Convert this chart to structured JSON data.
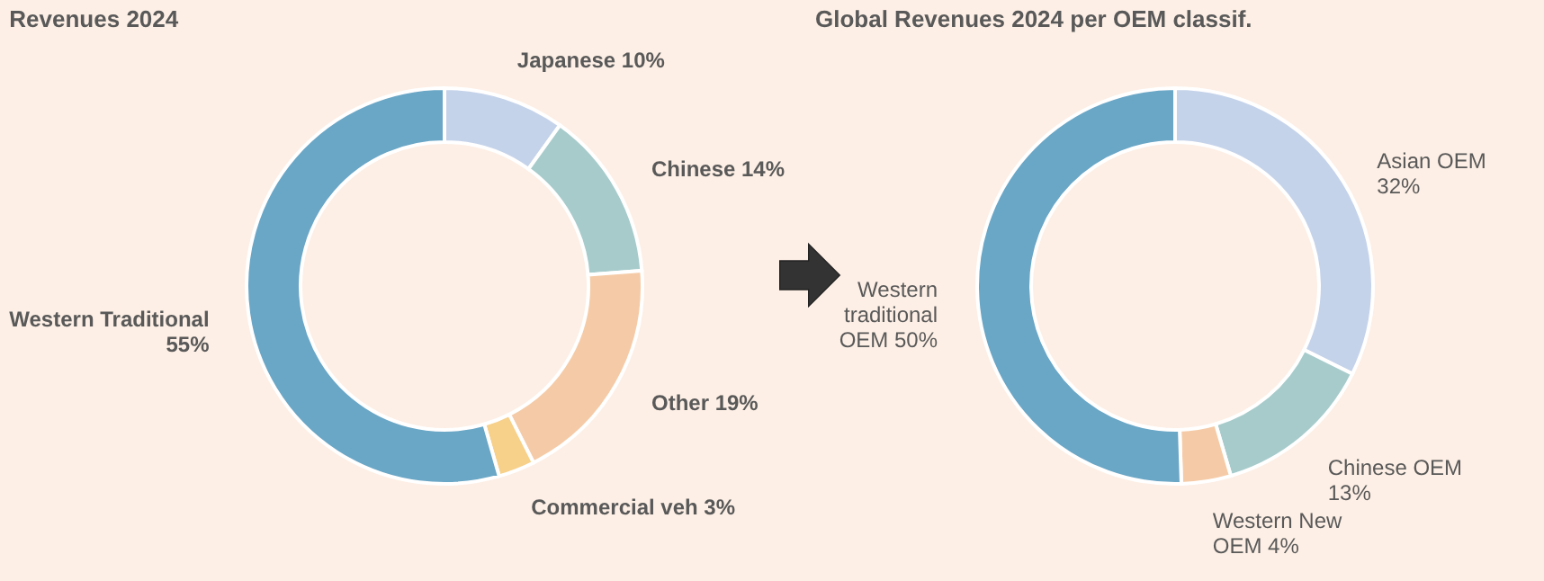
{
  "chart_data": [
    {
      "type": "donut",
      "title": "Revenues 2024",
      "categories": [
        "Japanese",
        "Chinese",
        "Other",
        "Commercial veh",
        "Western Traditional"
      ],
      "values": [
        10,
        14,
        19,
        3,
        55
      ],
      "value_labels": [
        "10%",
        "14%",
        "19%",
        "3%",
        "55%"
      ],
      "colors": [
        "#c5d3ea",
        "#a7cbcb",
        "#f5cba7",
        "#f7d08a",
        "#6aa6c6"
      ]
    },
    {
      "type": "donut",
      "title": "Global Revenues 2024 per OEM classif.",
      "categories": [
        "Asian OEM",
        "Chinese OEM",
        "Western New OEM",
        "Western traditional OEM"
      ],
      "values": [
        32,
        13,
        4,
        50
      ],
      "value_labels": [
        "32%",
        "13%",
        "4%",
        "50%"
      ],
      "colors": [
        "#c5d3ea",
        "#a7cbcb",
        "#f5cba7",
        "#6aa6c6"
      ]
    }
  ]
}
